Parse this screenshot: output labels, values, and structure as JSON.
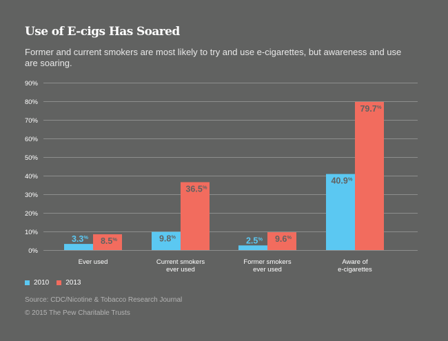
{
  "header": {
    "title": "Use of E-cigs Has Soared",
    "subtitle": "Former and current smokers are most likely to try and use e-cigarettes, but awareness and use are soaring."
  },
  "colors": {
    "background": "#616261",
    "series_2010": "#5bc8f2",
    "series_2013": "#f26c5e",
    "gridline": "#8e8f8e",
    "value_label_on_bar": "#616261"
  },
  "chart_data": {
    "type": "bar",
    "title": "Use of E-cigs Has Soared",
    "xlabel": "",
    "ylabel": "",
    "ylim": [
      0,
      90
    ],
    "ytick_step": 10,
    "yticks": [
      "0%",
      "10%",
      "20%",
      "30%",
      "40%",
      "50%",
      "60%",
      "70%",
      "80%",
      "90%"
    ],
    "grid": true,
    "legend_position": "bottom-left",
    "categories": [
      [
        "Ever used"
      ],
      [
        "Current smokers",
        "ever used"
      ],
      [
        "Former smokers",
        "ever used"
      ],
      [
        "Aware of",
        "e-cigarettes"
      ]
    ],
    "series": [
      {
        "name": "2010",
        "values": [
          3.3,
          9.8,
          2.5,
          40.9
        ],
        "labels": [
          "3.3",
          "9.8",
          "2.5",
          "40.9"
        ]
      },
      {
        "name": "2013",
        "values": [
          8.5,
          36.5,
          9.6,
          79.7
        ],
        "labels": [
          "8.5",
          "36.5",
          "9.6",
          "79.7"
        ]
      }
    ],
    "value_suffix": "%"
  },
  "legend": {
    "items": [
      {
        "label": "2010"
      },
      {
        "label": "2013"
      }
    ]
  },
  "footer": {
    "source": "Source: CDC/Nicotine & Tobacco Research Journal",
    "copyright": "© 2015 The Pew Charitable Trusts"
  }
}
